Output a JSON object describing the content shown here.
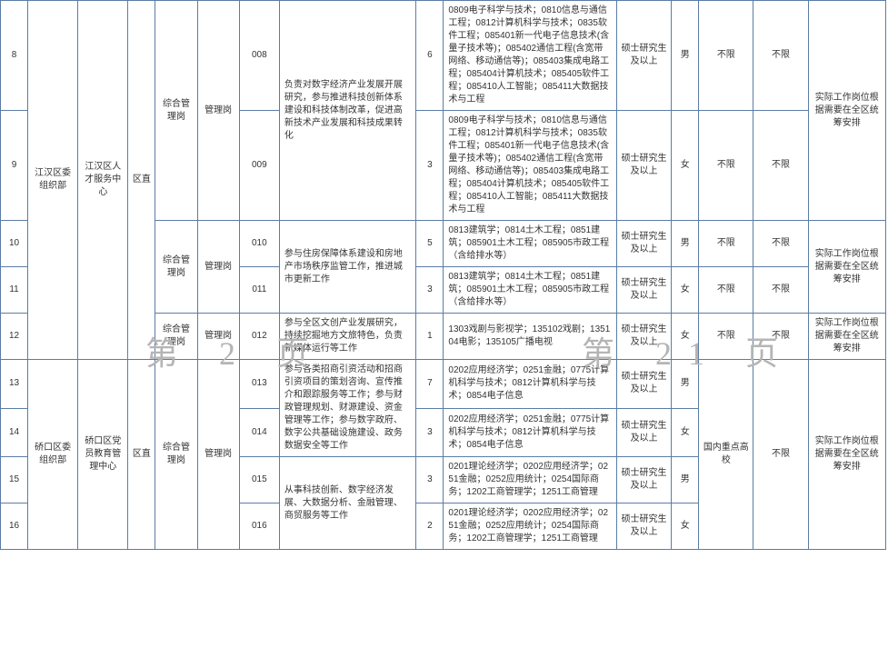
{
  "watermark_left": "第 2 页",
  "watermark_right": "第 21 页",
  "colors": {
    "border": "#5b7ca5",
    "text": "#333333",
    "watermark": "#b5b5b5",
    "bg": "#ffffff"
  },
  "table": {
    "columns": [
      {
        "id": "c1",
        "width": 30
      },
      {
        "id": "c2",
        "width": 55
      },
      {
        "id": "c3",
        "width": 55
      },
      {
        "id": "c4",
        "width": 30
      },
      {
        "id": "c5",
        "width": 46
      },
      {
        "id": "c6",
        "width": 46
      },
      {
        "id": "c7",
        "width": 44
      },
      {
        "id": "c8",
        "width": 150
      },
      {
        "id": "c9",
        "width": 30
      },
      {
        "id": "c10",
        "width": 190
      },
      {
        "id": "c11",
        "width": 60
      },
      {
        "id": "c12",
        "width": 30
      },
      {
        "id": "c13",
        "width": 60
      },
      {
        "id": "c14",
        "width": 60
      },
      {
        "id": "c15",
        "width": 85
      }
    ],
    "rows": {
      "r8": {
        "num": "8",
        "code": "008",
        "count": "6",
        "major": "0809电子科学与技术；0810信息与通信工程；0812计算机科学与技术；0835软件工程；085401新一代电子信息技术(含量子技术等)；085402通信工程(含宽带网络、移动通信等)；085403集成电路工程；085404计算机技术；085405软件工程；085410人工智能；085411大数据技术与工程",
        "edu": "硕士研究生及以上",
        "gender": "男",
        "limit1": "不限",
        "limit2": "不限"
      },
      "r9": {
        "num": "9",
        "code": "009",
        "count": "3",
        "major": "0809电子科学与技术；0810信息与通信工程；0812计算机科学与技术；0835软件工程；085401新一代电子信息技术(含量子技术等)；085402通信工程(含宽带网络、移动通信等)；085403集成电路工程；085404计算机技术；085405软件工程；085410人工智能；085411大数据技术与工程",
        "edu": "硕士研究生及以上",
        "gender": "女",
        "limit1": "不限",
        "limit2": "不限"
      },
      "g89": {
        "dept": "综合管理岗",
        "post": "管理岗",
        "duty": "负责对数字经济产业发展开展研究，参与推进科技创新体系建设和科技体制改革，促进高新技术产业发展和科技成果转化",
        "remark": "实际工作岗位根据需要在全区统筹安排"
      },
      "r10": {
        "num": "10",
        "code": "010",
        "count": "5",
        "major": "0813建筑学；0814土木工程；0851建筑；085901土木工程；085905市政工程（含给排水等）",
        "edu": "硕士研究生及以上",
        "gender": "男",
        "limit1": "不限",
        "limit2": "不限"
      },
      "r11": {
        "num": "11",
        "code": "011",
        "count": "3",
        "major": "0813建筑学；0814土木工程；0851建筑；085901土木工程；085905市政工程（含给排水等）",
        "edu": "硕士研究生及以上",
        "gender": "女",
        "limit1": "不限",
        "limit2": "不限"
      },
      "g1011": {
        "dept": "综合管理岗",
        "post": "管理岗",
        "duty": "参与住房保障体系建设和房地产市场秩序监管工作，推进城市更新工作",
        "remark": "实际工作岗位根据需要在全区统筹安排"
      },
      "r12": {
        "num": "12",
        "dept": "综合管理岗",
        "post": "管理岗",
        "code": "012",
        "duty": "参与全区文创产业发展研究，持续挖掘地方文旅特色，负责新媒体运行等工作",
        "count": "1",
        "major": "1303戏剧与影视学；135102戏剧；135104电影；135105广播电视",
        "edu": "硕士研究生及以上",
        "gender": "女",
        "limit1": "不限",
        "limit2": "不限",
        "remark": "实际工作岗位根据需要在全区统筹安排"
      },
      "g812": {
        "org": "江汉区委组织部",
        "unit": "江汉区人才服务中心",
        "level": "区直"
      },
      "r13": {
        "num": "13",
        "code": "013",
        "count": "7",
        "major": "0202应用经济学；0251金融；0775计算机科学与技术；0812计算机科学与技术；0854电子信息",
        "edu": "硕士研究生及以上",
        "gender": "男"
      },
      "r14": {
        "num": "14",
        "code": "014",
        "count": "3",
        "major": "0202应用经济学；0251金融；0775计算机科学与技术；0812计算机科学与技术；0854电子信息",
        "edu": "硕士研究生及以上",
        "gender": "女"
      },
      "g1314": {
        "org": "硚口区委组织部",
        "unit": "硚口区党员教育管理中心",
        "level": "区直",
        "dept": "综合管理岗",
        "post": "管理岗",
        "duty": "参与各类招商引资活动和招商引资项目的策划咨询、宣传推介和跟踪服务等工作；参与财政管理规划、财源建设、资金管理等工作；参与数字政府、数字公共基础设施建设、政务数据安全等工作",
        "limit1": "国内重点高校",
        "limit2": "不限",
        "remark": "实际工作岗位根据需要在全区统筹安排"
      },
      "r15": {
        "num": "15",
        "code": "015",
        "count": "3",
        "major": "0201理论经济学；0202应用经济学；0251金融；0252应用统计；0254国际商务；1202工商管理学；1251工商管理",
        "edu": "硕士研究生及以上",
        "gender": "男"
      },
      "r16": {
        "num": "16",
        "code": "016",
        "count": "2",
        "major": "0201理论经济学；0202应用经济学；0251金融；0252应用统计；0254国际商务；1202工商管理学；1251工商管理",
        "edu": "硕士研究生及以上",
        "gender": "女"
      },
      "g1516": {
        "duty": "从事科技创新、数字经济发展、大数据分析、金融管理、商贸服务等工作"
      }
    }
  }
}
